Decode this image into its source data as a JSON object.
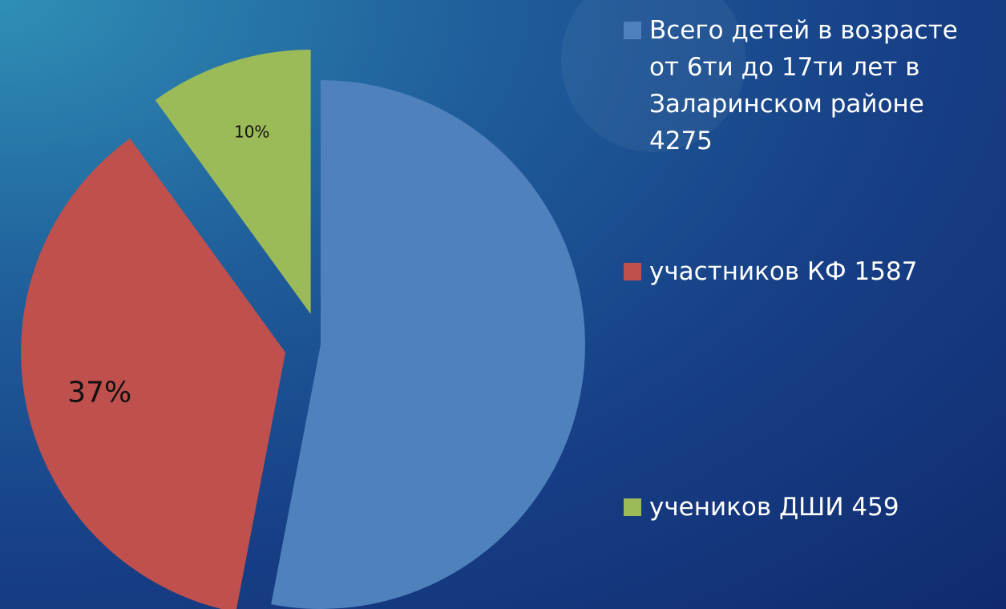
{
  "chart_data": {
    "type": "pie",
    "categories": [
      "Всего детей в возрасте от 6ти до 17ти лет в Заларинском районе  4275",
      "участников КФ 1587",
      "учеников ДШИ 459"
    ],
    "values": [
      53,
      37,
      10
    ],
    "value_labels": [
      null,
      "37%",
      "10%"
    ],
    "colors": [
      "#4f81bd",
      "#c0504d",
      "#9bbb59"
    ],
    "legend": "right"
  }
}
